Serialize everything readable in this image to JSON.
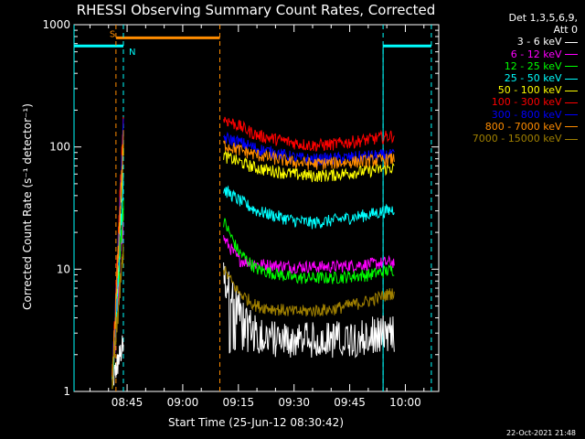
{
  "chart_data": {
    "type": "line",
    "title": "RHESSI Observing Summary Count Rates, Corrected",
    "ylabel": "Corrected Count Rate (s⁻¹ detector⁻¹)",
    "xlabel": "Start Time (25-Jun-12 08:30:42)",
    "y_scale": "log",
    "ylim": [
      1,
      1000
    ],
    "xlim": [
      "08:30:42",
      "10:09"
    ],
    "y_ticks": [
      "1",
      "10",
      "100",
      "1000"
    ],
    "x_ticks": [
      "08:45",
      "09:00",
      "09:15",
      "09:30",
      "09:45",
      "10:00"
    ],
    "legend_position": "right",
    "legend_header": [
      "Det 1,3,5,6,9,",
      "Att 0"
    ],
    "flag_labels": {
      "saa": "S",
      "night": "N"
    },
    "flags": {
      "night_bars": [
        [
          "08:30:42",
          "08:44"
        ],
        [
          "09:54",
          "10:07"
        ]
      ],
      "saa_bar": [
        "08:42",
        "09:10"
      ],
      "night_lines": [
        "08:44",
        "09:54",
        "10:07"
      ],
      "saa_lines": [
        "08:42",
        "09:10"
      ],
      "attenuator_line": "09:11"
    },
    "series": [
      {
        "name": "3 - 6 keV",
        "color": "#ffffff",
        "plateau": 2.5,
        "values": [
          [
            "09:11",
            9
          ],
          [
            "09:15",
            5
          ],
          [
            "09:20",
            3
          ],
          [
            "09:30",
            2.7
          ],
          [
            "09:40",
            2.8
          ],
          [
            "09:50",
            3
          ],
          [
            "09:57",
            3.2
          ]
        ]
      },
      {
        "name": "6 - 12 keV",
        "color": "#ff00ff",
        "plateau": 28,
        "values": [
          [
            "09:11",
            18
          ],
          [
            "09:15",
            12
          ],
          [
            "09:20",
            11
          ],
          [
            "09:30",
            10.5
          ],
          [
            "09:40",
            10.5
          ],
          [
            "09:50",
            11
          ],
          [
            "09:57",
            11.5
          ]
        ]
      },
      {
        "name": "12 - 25 keV",
        "color": "#00ff00",
        "plateau": 35,
        "values": [
          [
            "09:11",
            25
          ],
          [
            "09:15",
            14
          ],
          [
            "09:20",
            10
          ],
          [
            "09:30",
            8.5
          ],
          [
            "09:40",
            8.5
          ],
          [
            "09:50",
            9
          ],
          [
            "09:57",
            10
          ]
        ]
      },
      {
        "name": "25 - 50 keV",
        "color": "#00ffff",
        "plateau": 60,
        "values": [
          [
            "09:11",
            45
          ],
          [
            "09:15",
            37
          ],
          [
            "09:20",
            30
          ],
          [
            "09:30",
            25
          ],
          [
            "09:35",
            24
          ],
          [
            "09:40",
            25
          ],
          [
            "09:50",
            28
          ],
          [
            "09:57",
            31
          ]
        ]
      },
      {
        "name": "50 - 100 keV",
        "color": "#ffff00",
        "plateau": 110,
        "values": [
          [
            "09:11",
            85
          ],
          [
            "09:15",
            76
          ],
          [
            "09:20",
            67
          ],
          [
            "09:30",
            60
          ],
          [
            "09:35",
            58
          ],
          [
            "09:40",
            59
          ],
          [
            "09:50",
            64
          ],
          [
            "09:57",
            68
          ]
        ]
      },
      {
        "name": "100 - 300 keV",
        "color": "#ff0000",
        "plateau": 180,
        "values": [
          [
            "09:11",
            170
          ],
          [
            "09:15",
            150
          ],
          [
            "09:20",
            125
          ],
          [
            "09:30",
            108
          ],
          [
            "09:35",
            103
          ],
          [
            "09:40",
            105
          ],
          [
            "09:50",
            115
          ],
          [
            "09:57",
            125
          ]
        ]
      },
      {
        "name": "300 - 800 keV",
        "color": "#0000ff",
        "plateau": 140,
        "values": [
          [
            "09:11",
            120
          ],
          [
            "09:15",
            110
          ],
          [
            "09:20",
            97
          ],
          [
            "09:30",
            82
          ],
          [
            "09:35",
            79
          ],
          [
            "09:40",
            80
          ],
          [
            "09:50",
            84
          ],
          [
            "09:57",
            86
          ]
        ]
      },
      {
        "name": "800 - 7000 keV",
        "color": "#ff8c00",
        "plateau": 120,
        "values": [
          [
            "09:11",
            105
          ],
          [
            "09:15",
            95
          ],
          [
            "09:20",
            86
          ],
          [
            "09:30",
            75
          ],
          [
            "09:35",
            73
          ],
          [
            "09:40",
            74
          ],
          [
            "09:50",
            77
          ],
          [
            "09:57",
            80
          ]
        ]
      },
      {
        "name": "7000 - 15000 keV",
        "color": "#a08000",
        "plateau": 15,
        "values": [
          [
            "09:11",
            10
          ],
          [
            "09:15",
            6.5
          ],
          [
            "09:20",
            5
          ],
          [
            "09:30",
            4.5
          ],
          [
            "09:40",
            4.7
          ],
          [
            "09:50",
            5.5
          ],
          [
            "09:57",
            6.5
          ]
        ]
      }
    ],
    "first_segment": [
      "08:41",
      "08:44"
    ],
    "second_segment": [
      "09:11",
      "09:57"
    ]
  },
  "footer_date": "22-Oct-2021 21:48"
}
